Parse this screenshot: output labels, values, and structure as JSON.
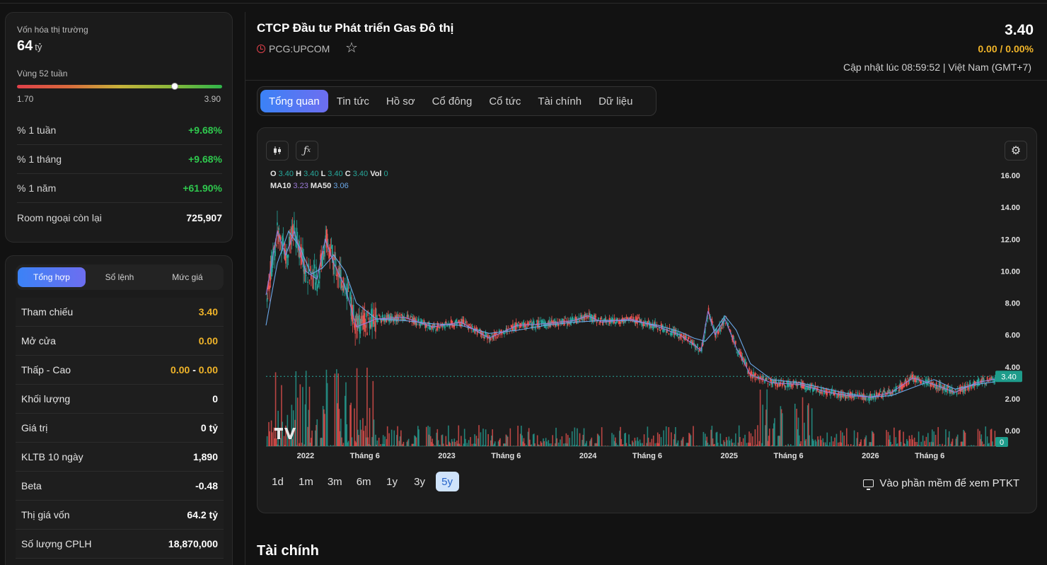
{
  "summary": {
    "market_cap_label": "Vốn hóa thị trường",
    "market_cap_value": "64",
    "market_cap_unit": "tỷ",
    "range_label": "Vùng 52 tuần",
    "range_min": "1.70",
    "range_max": "3.90",
    "range_position": 0.77,
    "stats": [
      {
        "label": "% 1 tuần",
        "value": "+9.68%"
      },
      {
        "label": "% 1 tháng",
        "value": "+9.68%"
      },
      {
        "label": "% 1 năm",
        "value": "+61.90%"
      },
      {
        "label": "Room ngoại còn lại",
        "value": "725,907"
      }
    ]
  },
  "trading": {
    "tabs": [
      "Tổng hợp",
      "Sổ lệnh",
      "Mức giá"
    ],
    "rows": [
      {
        "label": "Tham chiếu",
        "value": "3.40"
      },
      {
        "label": "Mở cửa",
        "value": "0.00"
      },
      {
        "label": "Thấp - Cao",
        "value_low": "0.00",
        "separator": "-",
        "value_high": "0.00"
      },
      {
        "label": "Khối lượng",
        "value": "0"
      },
      {
        "label": "Giá trị",
        "value": "0 tỷ"
      },
      {
        "label": "KLTB 10 ngày",
        "value": "1,890"
      },
      {
        "label": "Beta",
        "value": "-0.48"
      },
      {
        "label": "Thị giá vốn",
        "value": "64.2 tỷ"
      },
      {
        "label": "Số lượng CPLH",
        "value": "18,870,000"
      }
    ]
  },
  "header": {
    "company_name": "CTCP Đầu tư Phát triển Gas Đô thị",
    "ticker": "PCG:UPCOM",
    "price": "3.40",
    "change": "0.00 / 0.00%",
    "updated": "Cập nhật lúc 08:59:52 | Việt Nam (GMT+7)"
  },
  "tabs": [
    "Tổng quan",
    "Tin tức",
    "Hồ sơ",
    "Cổ đông",
    "Cổ tức",
    "Tài chính",
    "Dữ liệu"
  ],
  "chart_legend": {
    "o_label": "O",
    "o": "3.40",
    "h_label": "H",
    "h": "3.40",
    "l_label": "L",
    "l": "3.40",
    "c_label": "C",
    "c": "3.40",
    "vol_label": "Vol",
    "vol": "0",
    "ma10_label": "MA10",
    "ma10": "3.23",
    "ma50_label": "MA50",
    "ma50": "3.06"
  },
  "chart_data": {
    "type": "line",
    "y_ticks": [
      "16.00",
      "14.00",
      "12.00",
      "10.00",
      "8.00",
      "6.00",
      "4.00",
      "2.00",
      "0.00"
    ],
    "ylim": [
      0,
      16
    ],
    "x_ticks": [
      "2022",
      "Tháng 6",
      "2023",
      "Tháng 6",
      "2024",
      "Tháng 6",
      "2025",
      "Tháng 6",
      "2026",
      "Tháng 6"
    ],
    "x_tick_pos": [
      2022.0,
      2022.42,
      2023.0,
      2023.42,
      2024.0,
      2024.42,
      2025.0,
      2025.42,
      2026.0,
      2026.42
    ],
    "xlim": [
      2021.72,
      2026.88
    ],
    "last_price_label": "3.40",
    "last_volume_label": "0",
    "series": [
      {
        "name": "MA50",
        "color": "#6aa7e8",
        "x": [
          2021.72,
          2021.8,
          2021.88,
          2021.96,
          2022.04,
          2022.12,
          2022.2,
          2022.28,
          2022.36,
          2022.5,
          2022.7,
          2022.9,
          2023.1,
          2023.3,
          2023.5,
          2023.7,
          2023.9,
          2024.1,
          2024.3,
          2024.5,
          2024.65,
          2024.75,
          2024.83,
          2024.9,
          2024.97,
          2025.05,
          2025.15,
          2025.3,
          2025.5,
          2025.7,
          2025.85,
          2026.0,
          2026.15,
          2026.3,
          2026.45,
          2026.6,
          2026.75,
          2026.88
        ],
        "values": [
          6.6,
          10.5,
          12.5,
          11.5,
          9.8,
          10.2,
          11.0,
          10.0,
          8.0,
          7.0,
          6.9,
          6.7,
          6.6,
          6.1,
          6.3,
          6.6,
          6.8,
          6.9,
          6.9,
          6.6,
          6.2,
          5.8,
          5.6,
          6.3,
          7.2,
          6.3,
          4.2,
          3.2,
          3.0,
          2.6,
          2.3,
          2.1,
          2.2,
          2.7,
          3.2,
          2.6,
          2.9,
          3.06
        ]
      },
      {
        "name": "MA10",
        "color": "#9b7ad8",
        "x": [
          2021.72,
          2021.8,
          2021.86,
          2021.92,
          2022.0,
          2022.08,
          2022.14,
          2022.2,
          2022.28,
          2022.36,
          2022.5,
          2022.7,
          2022.9,
          2023.1,
          2023.3,
          2023.5,
          2023.7,
          2023.9,
          2024.0,
          2024.1,
          2024.3,
          2024.5,
          2024.65,
          2024.75,
          2024.8,
          2024.85,
          2024.9,
          2024.97,
          2025.05,
          2025.15,
          2025.3,
          2025.5,
          2025.7,
          2025.85,
          2026.0,
          2026.15,
          2026.3,
          2026.45,
          2026.6,
          2026.75,
          2026.88
        ],
        "values": [
          8.5,
          12.5,
          11.0,
          12.5,
          10.0,
          9.5,
          12.0,
          10.5,
          9.0,
          6.5,
          7.0,
          7.1,
          6.5,
          6.8,
          5.8,
          6.6,
          6.7,
          6.9,
          7.2,
          6.8,
          7.0,
          6.5,
          6.0,
          5.4,
          5.0,
          7.5,
          6.0,
          7.0,
          5.2,
          3.5,
          3.0,
          2.9,
          2.4,
          2.2,
          2.1,
          2.4,
          3.3,
          2.9,
          2.4,
          3.0,
          3.23
        ]
      }
    ]
  },
  "periods": [
    "1d",
    "1m",
    "3m",
    "6m",
    "1y",
    "3y",
    "5y"
  ],
  "active_period": "5y",
  "ptkt_label": "Vào phần mềm để xem PTKT",
  "section_title": "Tài chính"
}
